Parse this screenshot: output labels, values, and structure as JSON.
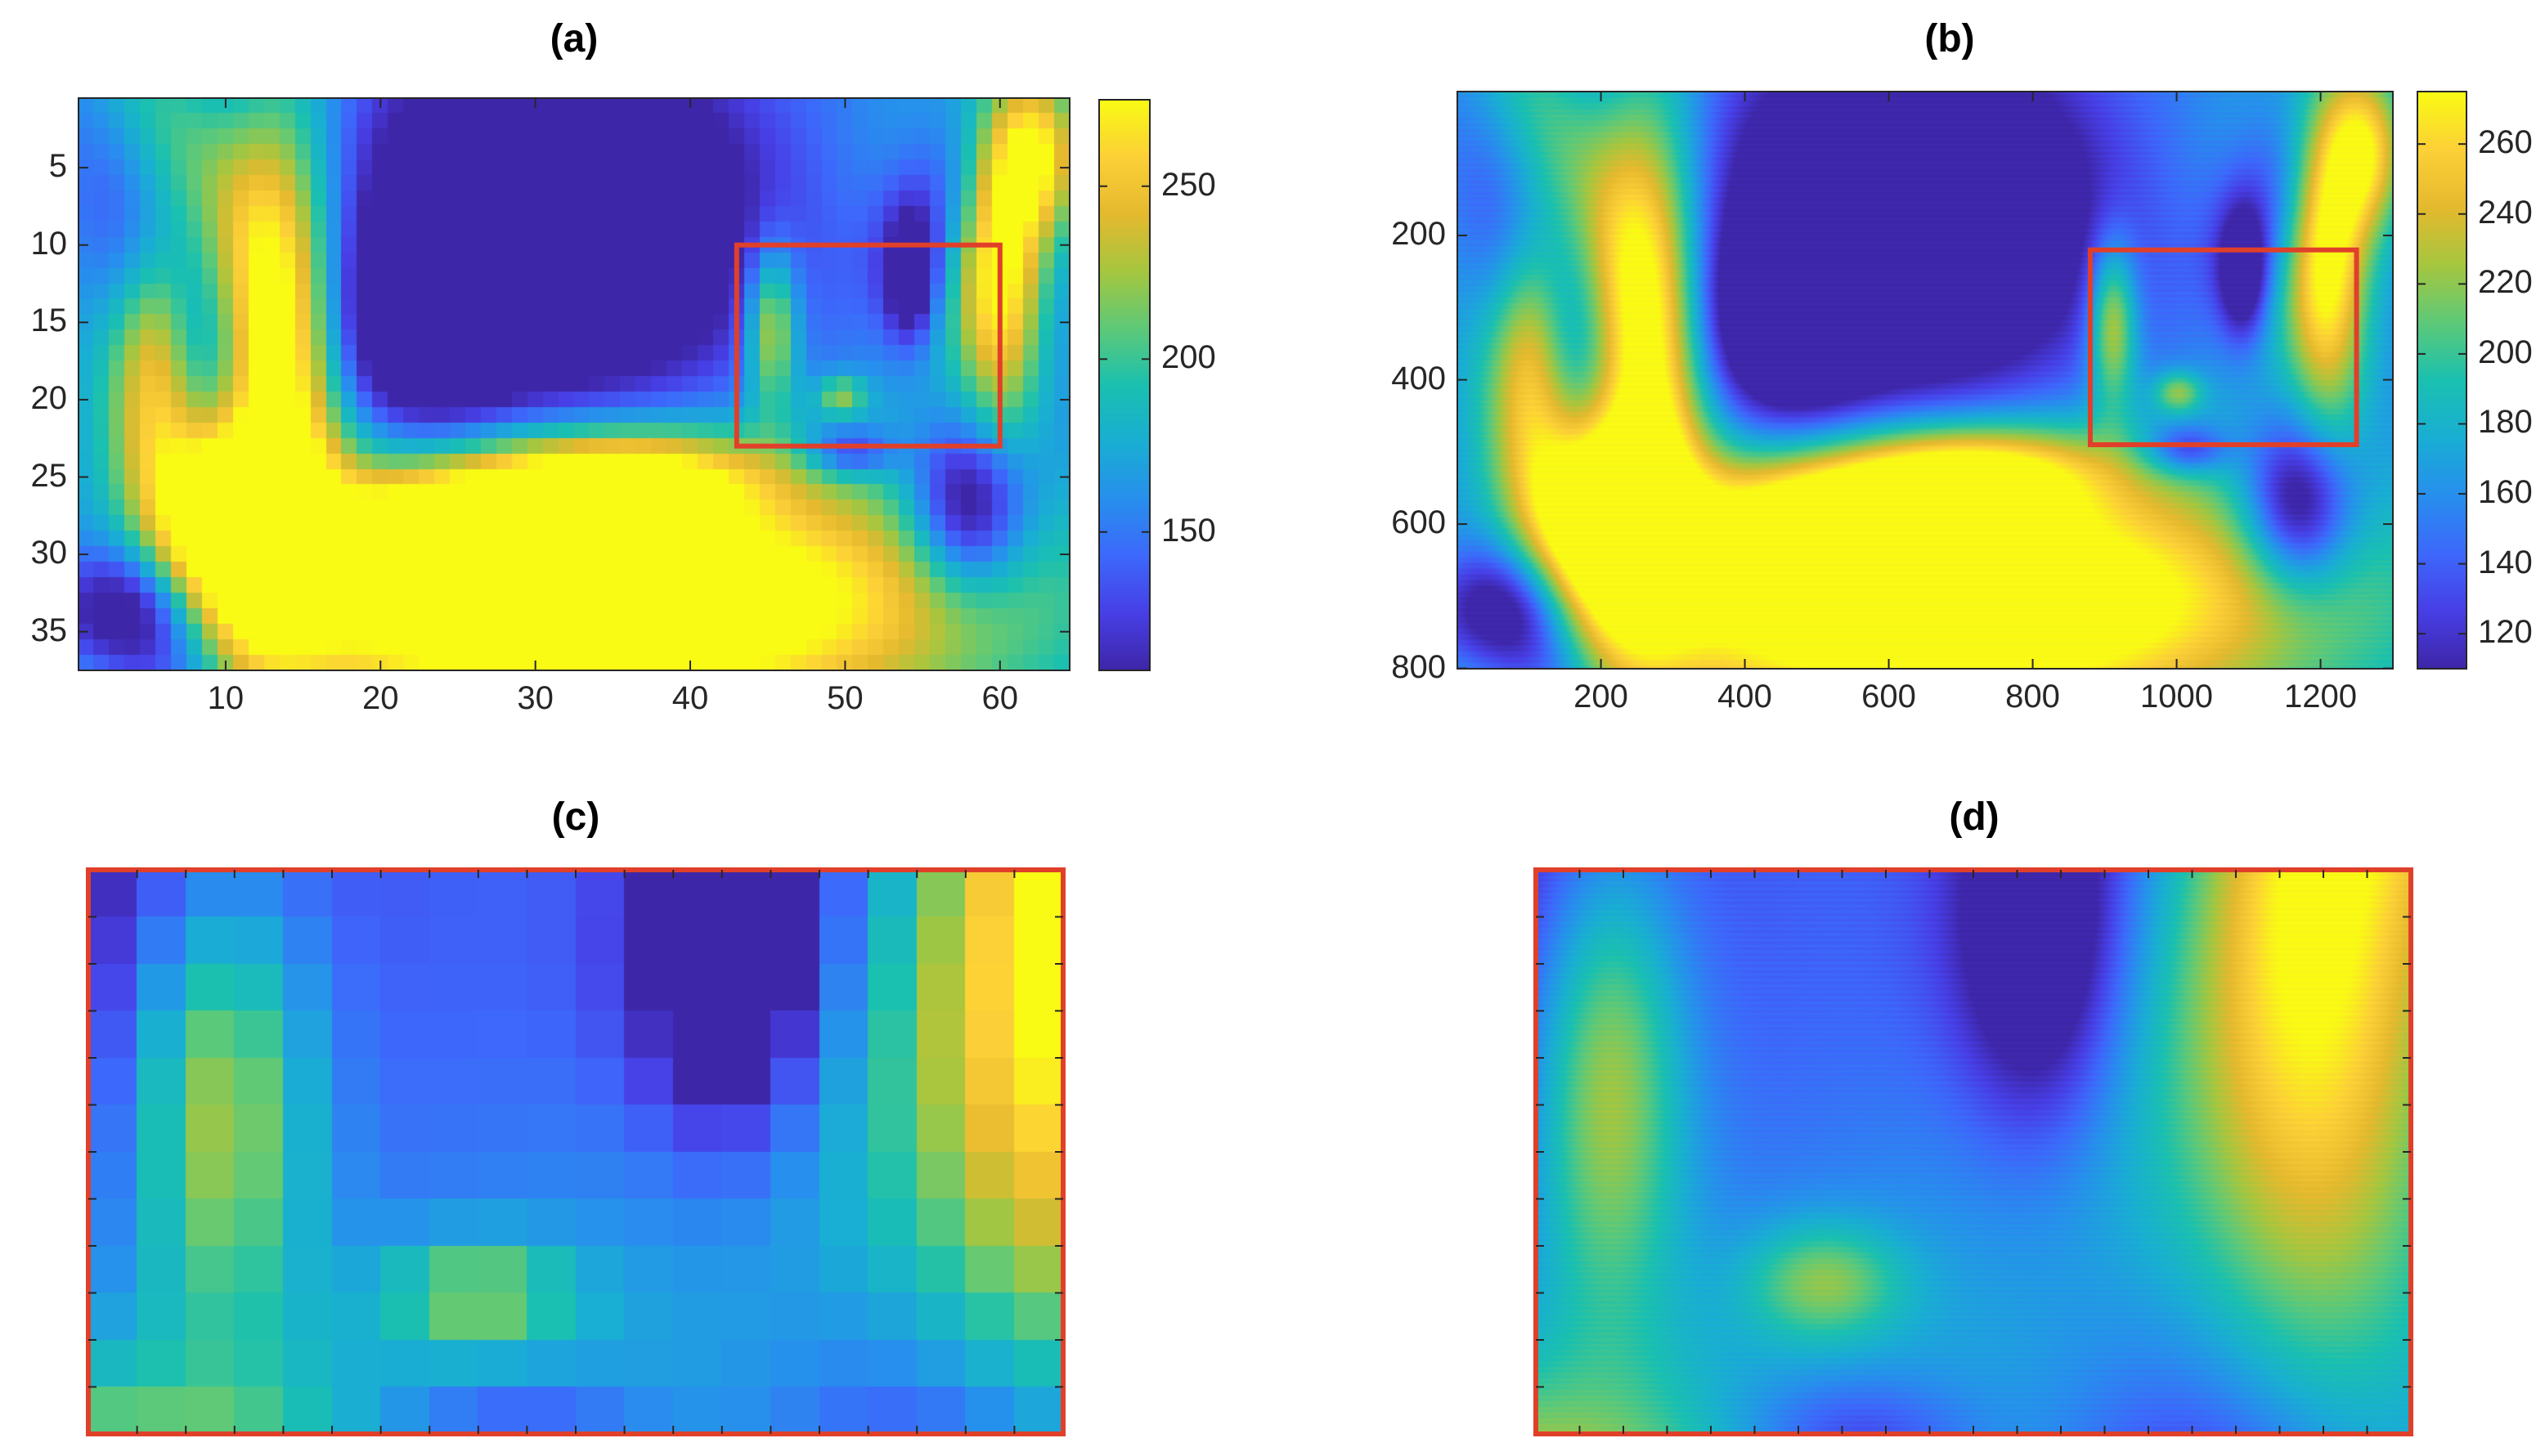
{
  "panels": [
    {
      "title": "(a)",
      "x_ticks": [
        "10",
        "20",
        "30",
        "40",
        "50",
        "60"
      ],
      "y_ticks": [
        "5",
        "10",
        "15",
        "20",
        "25",
        "30",
        "35"
      ],
      "colorbar_ticks": [
        "250",
        "200",
        "150"
      ]
    },
    {
      "title": "(b)",
      "x_ticks": [
        "200",
        "400",
        "600",
        "800",
        "1000",
        "1200"
      ],
      "y_ticks": [
        "200",
        "400",
        "600",
        "800"
      ],
      "colorbar_ticks": [
        "260",
        "240",
        "220",
        "200",
        "180",
        "160",
        "140",
        "120"
      ]
    },
    {
      "title": "(c)"
    },
    {
      "title": "(d)"
    }
  ],
  "chart_data": [
    {
      "id": "a",
      "type": "heatmap",
      "title": "(a)",
      "x_range": [
        1,
        64
      ],
      "y_range": [
        1,
        37
      ],
      "y_reversed": true,
      "x_ticks": [
        10,
        20,
        30,
        40,
        50,
        60
      ],
      "y_ticks": [
        5,
        10,
        15,
        20,
        25,
        30,
        35
      ],
      "colormap": "parula",
      "clim": [
        110,
        275
      ],
      "colorbar_ticks": [
        150,
        200,
        250
      ],
      "shading": "flat",
      "highlight_box": {
        "x": [
          43,
          60
        ],
        "y": [
          10,
          23
        ],
        "color": "#e0402a"
      }
    },
    {
      "id": "b",
      "type": "heatmap",
      "title": "(b)",
      "x_range": [
        1,
        1300
      ],
      "y_range": [
        1,
        800
      ],
      "y_reversed": true,
      "x_ticks": [
        200,
        400,
        600,
        800,
        1000,
        1200
      ],
      "y_ticks": [
        200,
        400,
        600,
        800
      ],
      "colormap": "parula",
      "clim": [
        110,
        275
      ],
      "colorbar_ticks": [
        120,
        140,
        160,
        180,
        200,
        220,
        240,
        260
      ],
      "shading": "interp",
      "highlight_box": {
        "x": [
          880,
          1250
        ],
        "y": [
          220,
          490
        ],
        "color": "#e0402a"
      }
    },
    {
      "id": "c",
      "type": "heatmap",
      "title": "(c)",
      "source": "zoom of box in (a)",
      "shading": "flat",
      "border_color": "#e0402a"
    },
    {
      "id": "d",
      "type": "heatmap",
      "title": "(d)",
      "source": "zoom of box in (b)",
      "shading": "interp",
      "border_color": "#e0402a"
    }
  ]
}
